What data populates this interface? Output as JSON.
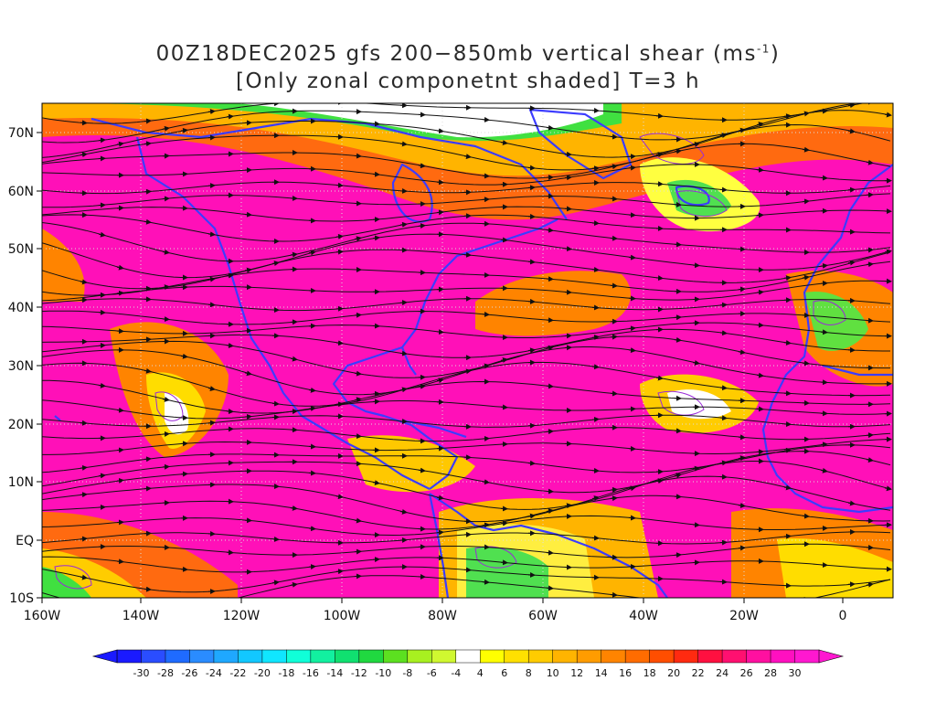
{
  "title": {
    "line1_main": "00Z18DEC2025 gfs 200−850mb vertical shear (ms",
    "line1_sup": "-1",
    "line1_end": ")",
    "line2": "[Only zonal componetnt shaded] T=3 h"
  },
  "axes": {
    "lat_labels": [
      "70N",
      "60N",
      "50N",
      "40N",
      "30N",
      "20N",
      "10N",
      "EQ",
      "10S"
    ],
    "lon_labels": [
      "160W",
      "140W",
      "120W",
      "100W",
      "80W",
      "60W",
      "40W",
      "20W",
      "0"
    ]
  },
  "colorbar": {
    "levels": [
      "-30",
      "-28",
      "-26",
      "-24",
      "-22",
      "-20",
      "-18",
      "-16",
      "-14",
      "-12",
      "-10",
      "-8",
      "-6",
      "-4",
      "4",
      "6",
      "8",
      "10",
      "12",
      "14",
      "16",
      "18",
      "20",
      "22",
      "24",
      "26",
      "28",
      "30"
    ],
    "colors": [
      "#1a1aff",
      "#2a4dff",
      "#1f6bff",
      "#2a8cff",
      "#1fa8ff",
      "#12c8ff",
      "#10e6ff",
      "#10ffd8",
      "#12f0a0",
      "#10e070",
      "#20d840",
      "#5ce020",
      "#a8f020",
      "#d0f830",
      "#ffffff",
      "#ffff00",
      "#ffe000",
      "#ffcc00",
      "#ffb400",
      "#ff9c00",
      "#ff8400",
      "#ff6c00",
      "#ff4e00",
      "#ff2a10",
      "#ff1040",
      "#ff1070",
      "#ff10a0",
      "#ff10c0",
      "#ff18d0"
    ]
  },
  "colors": {
    "coastline": "#3c3cff",
    "contour": "#9a2ad8",
    "streamline": "#111111",
    "grid": "#cccccc"
  }
}
